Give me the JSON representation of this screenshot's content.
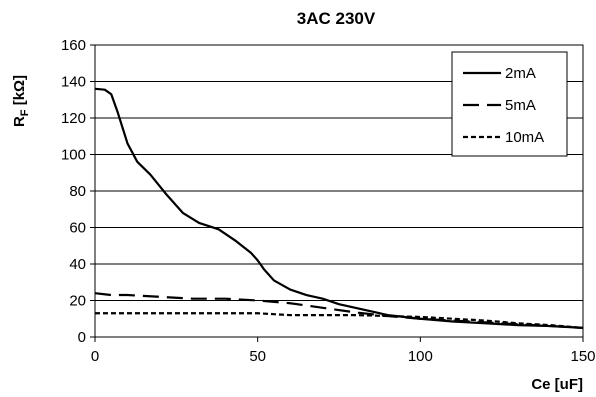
{
  "chart_data": {
    "type": "line",
    "title": "3AC 230V",
    "xlabel": "Ce [uF]",
    "ylabel": {
      "main": "R",
      "sub": "F",
      "unit": " [kΩ]"
    },
    "xlim": [
      0,
      150
    ],
    "ylim": [
      0,
      160
    ],
    "xticks": [
      0,
      50,
      100,
      150
    ],
    "yticks": [
      0,
      20,
      40,
      60,
      80,
      100,
      120,
      140,
      160
    ],
    "grid": "horizontal",
    "legend": "top-right",
    "series": [
      {
        "name": "2mA",
        "style": "solid",
        "x": [
          0,
          3,
          5,
          7,
          10,
          13,
          17,
          22,
          27,
          32,
          38,
          43,
          48,
          50,
          52,
          55,
          60,
          65,
          70,
          75,
          80,
          90,
          100,
          110,
          120,
          130,
          140,
          150
        ],
        "y": [
          136,
          135.5,
          133,
          123,
          106,
          96,
          89,
          78,
          68,
          62.5,
          59,
          53,
          46,
          42,
          37,
          31,
          26,
          23,
          21,
          18,
          16,
          12,
          10,
          8.5,
          7.5,
          6.5,
          6,
          5
        ]
      },
      {
        "name": "5mA",
        "style": "dashed",
        "x": [
          0,
          5,
          10,
          20,
          30,
          40,
          50,
          60,
          70,
          80,
          90,
          100,
          110,
          120,
          130,
          140,
          150
        ],
        "y": [
          24,
          23,
          23,
          22,
          21,
          21,
          20,
          18.5,
          16,
          13.5,
          11.5,
          10,
          9,
          8,
          7,
          6,
          5
        ]
      },
      {
        "name": "10mA",
        "style": "dotted",
        "x": [
          0,
          10,
          20,
          30,
          40,
          50,
          55,
          60,
          70,
          80,
          90,
          100,
          110,
          120,
          130,
          140,
          150
        ],
        "y": [
          13,
          13,
          13,
          13,
          13,
          13,
          12.5,
          12,
          12,
          12,
          11.5,
          11,
          10,
          9,
          7.5,
          6.5,
          5
        ]
      }
    ]
  }
}
